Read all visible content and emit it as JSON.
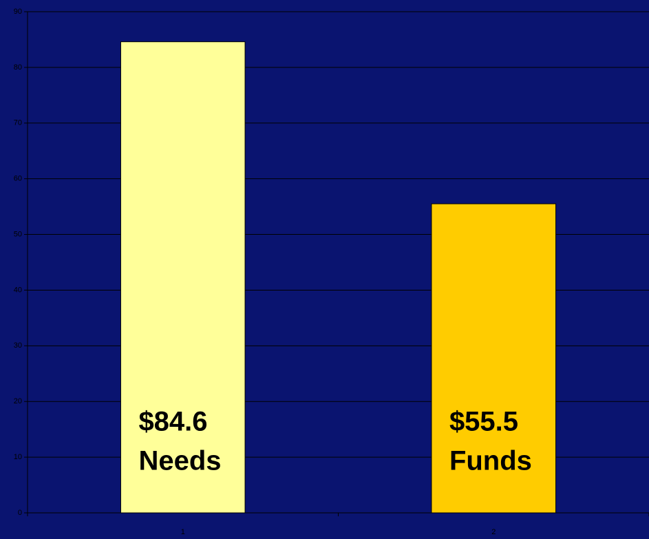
{
  "chart_data": {
    "type": "bar",
    "categories": [
      "1",
      "2"
    ],
    "values": [
      84.6,
      55.5
    ],
    "value_labels": [
      "$84.6",
      "$55.5"
    ],
    "annotations": [
      "Needs",
      "Funds"
    ],
    "colors": [
      "#ffff99",
      "#ffcc00"
    ],
    "ylim": [
      0,
      90
    ],
    "yticks": [
      0,
      10,
      20,
      30,
      40,
      50,
      60,
      70,
      80,
      90
    ],
    "grid": true
  }
}
